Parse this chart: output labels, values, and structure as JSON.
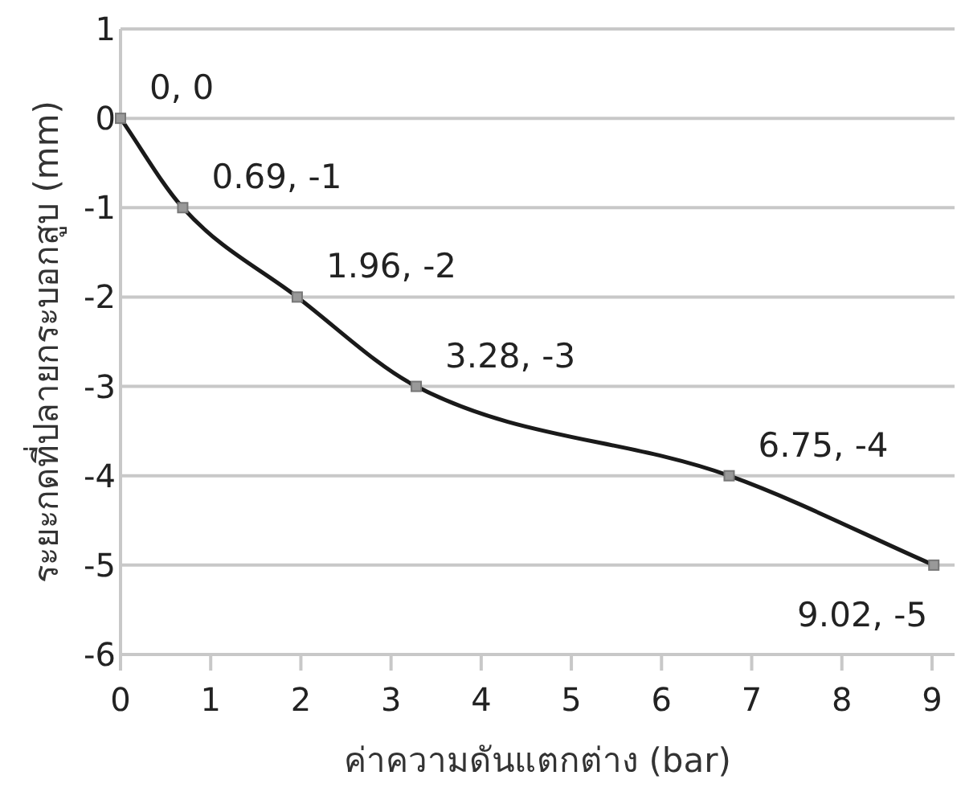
{
  "chart_data": {
    "type": "line",
    "xlabel": "ค่าความดันแตกต่าง (bar)",
    "ylabel": "ระยะกดที่ปลายกระบอกสูบ (mm)",
    "x": [
      0,
      0.69,
      1.96,
      3.28,
      6.75,
      9.02
    ],
    "series": [
      {
        "color": "#1a1a1a",
        "values": [
          0,
          -1,
          -2,
          -3,
          -4,
          -5
        ],
        "value_labels": [
          "0, 0",
          "0.69, -1",
          "1.96, -2",
          "3.28, -3",
          "6.75, -4",
          "9.02, -5"
        ]
      }
    ],
    "xlim": [
      0,
      9.25
    ],
    "ylim": [
      -6,
      1
    ],
    "xticks": [
      0,
      1,
      2,
      3,
      4,
      5,
      6,
      7,
      8,
      9
    ],
    "yticks": [
      -6,
      -5,
      -4,
      -3,
      -2,
      -1,
      0,
      1
    ],
    "grid": "y",
    "marker": "square",
    "line_style": "solid"
  }
}
